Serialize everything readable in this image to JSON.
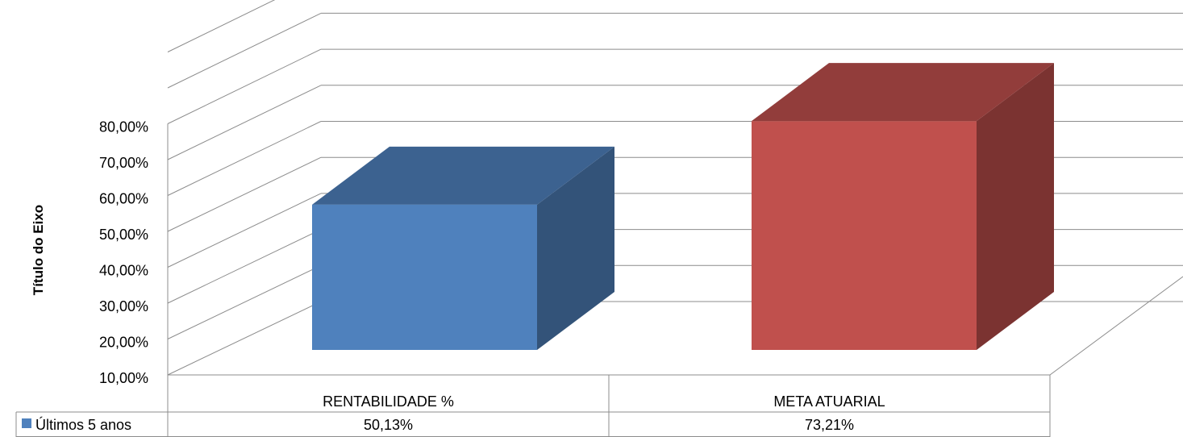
{
  "chart_data": {
    "type": "bar",
    "style": "3d-column",
    "ylabel": "Título do Eixo",
    "ylim": [
      0.1,
      0.8
    ],
    "yticks": [
      "10,00%",
      "20,00%",
      "30,00%",
      "40,00%",
      "50,00%",
      "60,00%",
      "70,00%",
      "80,00%"
    ],
    "categories": [
      "RENTABILIDADE %",
      "META ATUARIAL"
    ],
    "series": [
      {
        "name": "Últimos 5 anos",
        "values": [
          0.5013,
          0.7321
        ],
        "labels": [
          "50,13%",
          "73,21%"
        ],
        "colors": [
          "#4f81bd",
          "#c0504d"
        ]
      }
    ],
    "data_table": true,
    "grid": true
  }
}
